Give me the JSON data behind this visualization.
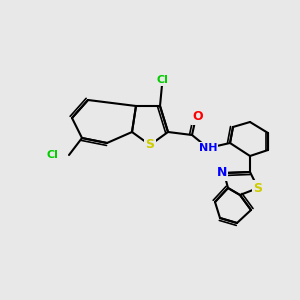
{
  "background_color": "#e8e8e8",
  "atom_colors": {
    "C": "#000000",
    "N": "#0000ff",
    "O": "#ff0000",
    "S": "#cccc00",
    "Cl": "#00cc00",
    "H": "#000000"
  },
  "bond_color": "#000000",
  "title": "",
  "figsize": [
    3.0,
    3.0
  ],
  "dpi": 100
}
